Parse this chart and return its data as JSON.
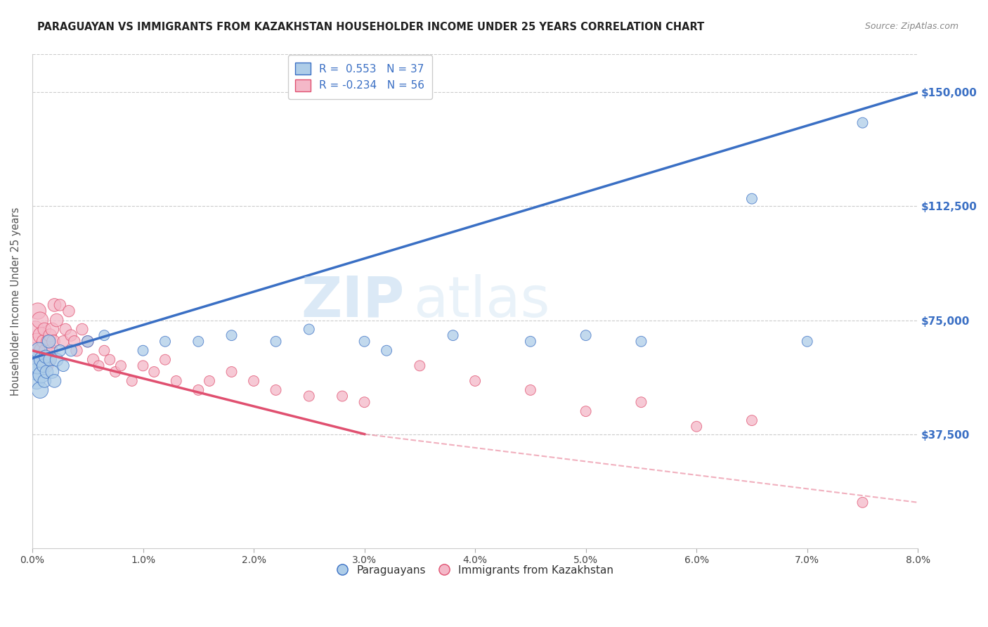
{
  "title": "PARAGUAYAN VS IMMIGRANTS FROM KAZAKHSTAN HOUSEHOLDER INCOME UNDER 25 YEARS CORRELATION CHART",
  "source": "Source: ZipAtlas.com",
  "ylabel": "Householder Income Under 25 years",
  "xlabel_ticks": [
    "0.0%",
    "1.0%",
    "2.0%",
    "3.0%",
    "4.0%",
    "5.0%",
    "6.0%",
    "7.0%",
    "8.0%"
  ],
  "xlabel_vals": [
    0.0,
    1.0,
    2.0,
    3.0,
    4.0,
    5.0,
    6.0,
    7.0,
    8.0
  ],
  "ytick_labels": [
    "$37,500",
    "$75,000",
    "$112,500",
    "$150,000"
  ],
  "ytick_vals": [
    37500,
    75000,
    112500,
    150000
  ],
  "ylim": [
    0,
    162500
  ],
  "xlim": [
    0.0,
    8.0
  ],
  "blue_R": 0.553,
  "blue_N": 37,
  "pink_R": -0.234,
  "pink_N": 56,
  "blue_color": "#aecde8",
  "pink_color": "#f4b8c8",
  "blue_line_color": "#3a6fc4",
  "pink_line_color": "#e05070",
  "watermark_zip": "ZIP",
  "watermark_atlas": "atlas",
  "legend_blue_label": "R =  0.553   N = 37",
  "legend_pink_label": "R = -0.234   N = 56",
  "legend_label_paraguayans": "Paraguayans",
  "legend_label_immigrants": "Immigrants from Kazakhstan",
  "blue_line_y0": 62500,
  "blue_line_y8": 150000,
  "pink_solid_x0": 0.0,
  "pink_solid_x1": 3.0,
  "pink_solid_y0": 65000,
  "pink_solid_y1": 37500,
  "pink_dash_x0": 3.0,
  "pink_dash_x1": 8.0,
  "pink_dash_y0": 37500,
  "pink_dash_y1": 15000,
  "background_color": "#ffffff",
  "grid_color": "#cccccc",
  "title_color": "#222222",
  "title_fontsize": 10.5,
  "axis_label_color": "#555555",
  "tick_color_right": "#3a6fc4",
  "blue_points": [
    [
      0.02,
      62000
    ],
    [
      0.03,
      58000
    ],
    [
      0.04,
      55000
    ],
    [
      0.05,
      60000
    ],
    [
      0.06,
      65000
    ],
    [
      0.07,
      52000
    ],
    [
      0.08,
      57000
    ],
    [
      0.09,
      62000
    ],
    [
      0.1,
      60000
    ],
    [
      0.11,
      55000
    ],
    [
      0.12,
      63000
    ],
    [
      0.13,
      58000
    ],
    [
      0.15,
      68000
    ],
    [
      0.16,
      62000
    ],
    [
      0.18,
      58000
    ],
    [
      0.2,
      55000
    ],
    [
      0.22,
      62000
    ],
    [
      0.25,
      65000
    ],
    [
      0.28,
      60000
    ],
    [
      0.35,
      65000
    ],
    [
      0.5,
      68000
    ],
    [
      0.65,
      70000
    ],
    [
      1.0,
      65000
    ],
    [
      1.2,
      68000
    ],
    [
      1.5,
      68000
    ],
    [
      1.8,
      70000
    ],
    [
      2.2,
      68000
    ],
    [
      2.5,
      72000
    ],
    [
      3.0,
      68000
    ],
    [
      3.2,
      65000
    ],
    [
      3.8,
      70000
    ],
    [
      4.5,
      68000
    ],
    [
      5.0,
      70000
    ],
    [
      5.5,
      68000
    ],
    [
      6.5,
      115000
    ],
    [
      7.0,
      68000
    ],
    [
      7.5,
      140000
    ]
  ],
  "pink_points": [
    [
      0.02,
      65000
    ],
    [
      0.03,
      72000
    ],
    [
      0.04,
      68000
    ],
    [
      0.05,
      78000
    ],
    [
      0.06,
      62000
    ],
    [
      0.07,
      75000
    ],
    [
      0.08,
      70000
    ],
    [
      0.09,
      65000
    ],
    [
      0.1,
      68000
    ],
    [
      0.11,
      72000
    ],
    [
      0.12,
      65000
    ],
    [
      0.13,
      60000
    ],
    [
      0.14,
      68000
    ],
    [
      0.15,
      62000
    ],
    [
      0.16,
      70000
    ],
    [
      0.17,
      65000
    ],
    [
      0.18,
      72000
    ],
    [
      0.19,
      68000
    ],
    [
      0.2,
      80000
    ],
    [
      0.22,
      75000
    ],
    [
      0.25,
      80000
    ],
    [
      0.28,
      68000
    ],
    [
      0.3,
      72000
    ],
    [
      0.33,
      78000
    ],
    [
      0.35,
      70000
    ],
    [
      0.38,
      68000
    ],
    [
      0.4,
      65000
    ],
    [
      0.45,
      72000
    ],
    [
      0.5,
      68000
    ],
    [
      0.55,
      62000
    ],
    [
      0.6,
      60000
    ],
    [
      0.65,
      65000
    ],
    [
      0.7,
      62000
    ],
    [
      0.75,
      58000
    ],
    [
      0.8,
      60000
    ],
    [
      0.9,
      55000
    ],
    [
      1.0,
      60000
    ],
    [
      1.1,
      58000
    ],
    [
      1.2,
      62000
    ],
    [
      1.3,
      55000
    ],
    [
      1.5,
      52000
    ],
    [
      1.6,
      55000
    ],
    [
      1.8,
      58000
    ],
    [
      2.0,
      55000
    ],
    [
      2.2,
      52000
    ],
    [
      2.5,
      50000
    ],
    [
      2.8,
      50000
    ],
    [
      3.0,
      48000
    ],
    [
      3.5,
      60000
    ],
    [
      4.0,
      55000
    ],
    [
      4.5,
      52000
    ],
    [
      5.0,
      45000
    ],
    [
      5.5,
      48000
    ],
    [
      6.0,
      40000
    ],
    [
      6.5,
      42000
    ],
    [
      7.5,
      15000
    ]
  ]
}
